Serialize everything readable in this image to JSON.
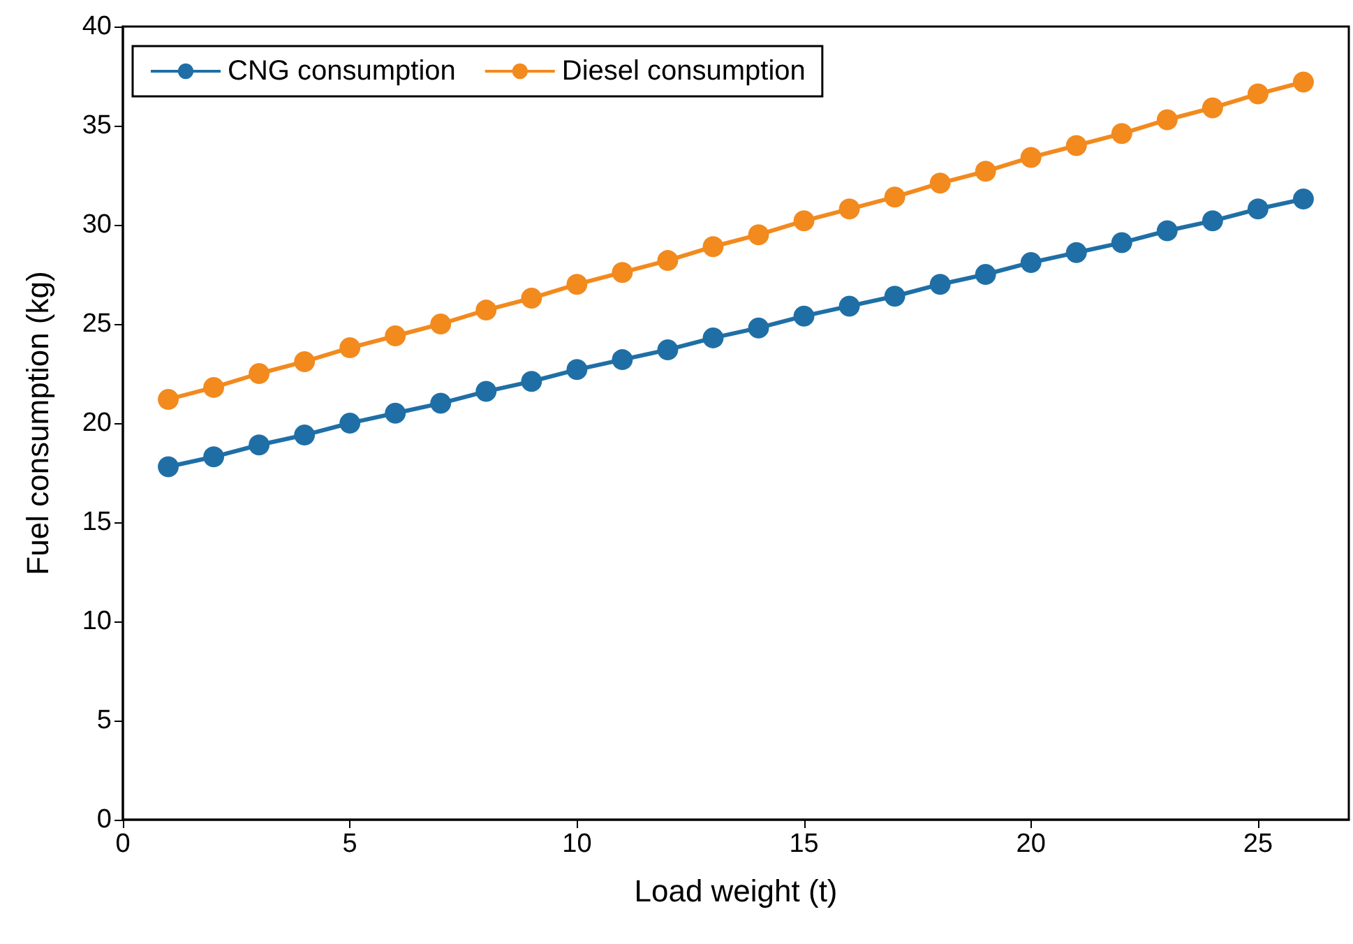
{
  "chart_data": {
    "type": "line",
    "xlabel": "Load weight (t)",
    "ylabel": "Fuel consumption (kg)",
    "x": [
      1,
      2,
      3,
      4,
      5,
      6,
      7,
      8,
      9,
      10,
      11,
      12,
      13,
      14,
      15,
      16,
      17,
      18,
      19,
      20,
      21,
      22,
      23,
      24,
      25,
      26
    ],
    "series": [
      {
        "name": "CNG consumption",
        "color": "#1f6fa6",
        "values": [
          17.8,
          18.3,
          18.9,
          19.4,
          20.0,
          20.5,
          21.0,
          21.6,
          22.1,
          22.7,
          23.2,
          23.7,
          24.3,
          24.8,
          25.4,
          25.9,
          26.4,
          27.0,
          27.5,
          28.1,
          28.6,
          29.1,
          29.7,
          30.2,
          30.8,
          31.3
        ]
      },
      {
        "name": "Diesel consumption",
        "color": "#f28a1e",
        "values": [
          21.2,
          21.8,
          22.5,
          23.1,
          23.8,
          24.4,
          25.0,
          25.7,
          26.3,
          27.0,
          27.6,
          28.2,
          28.9,
          29.5,
          30.2,
          30.8,
          31.4,
          32.1,
          32.7,
          33.4,
          34.0,
          34.6,
          35.3,
          35.9,
          36.6,
          37.2
        ]
      }
    ],
    "xlim": [
      0,
      27
    ],
    "xticks": [
      0,
      5,
      10,
      15,
      20,
      25
    ],
    "ylim": [
      0,
      40
    ],
    "yticks": [
      0,
      5,
      10,
      15,
      20,
      25,
      30,
      35,
      40
    ],
    "grid": false,
    "legend": "top left",
    "marker": "circle",
    "line_style": "solid"
  }
}
